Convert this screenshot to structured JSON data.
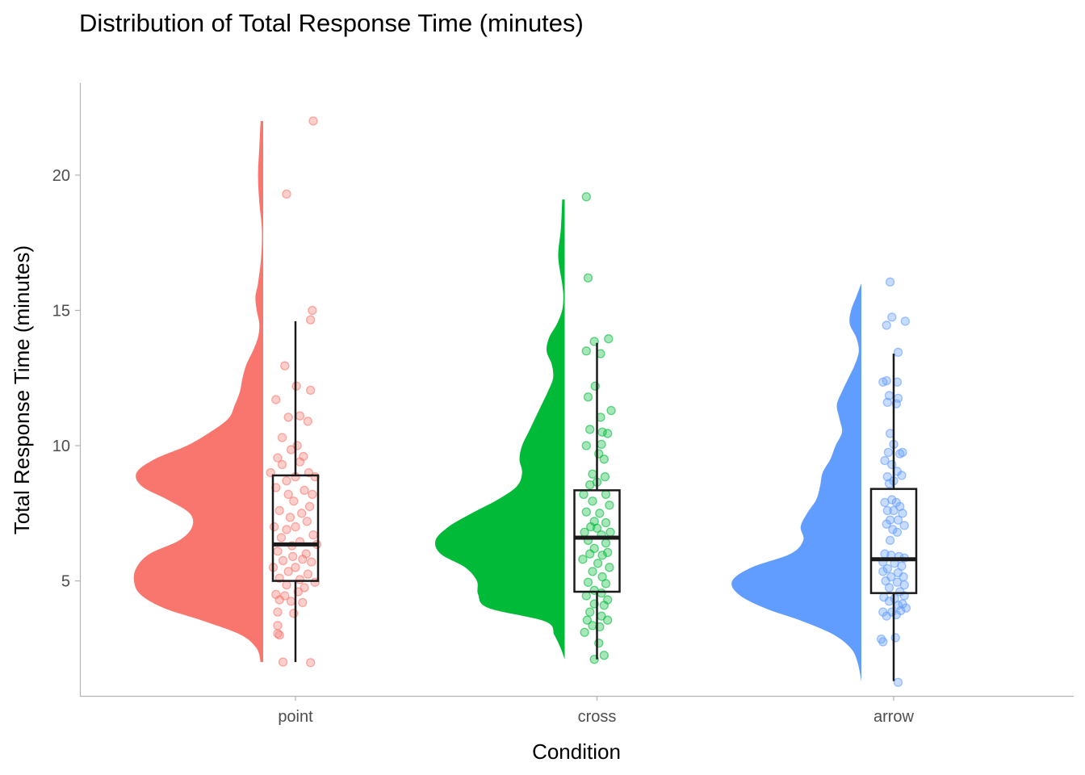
{
  "chart_data": {
    "type": "raincloud",
    "title": "Distribution of Total Response Time (minutes)",
    "xlabel": "Condition",
    "ylabel": "Total Response Time (minutes)",
    "categories": [
      "point",
      "cross",
      "arrow"
    ],
    "y_ticks": [
      5,
      10,
      15,
      20
    ],
    "ylim": [
      0.75,
      23.4
    ],
    "grid": false,
    "legend": "none",
    "colors": {
      "point": "#F8766D",
      "cross": "#00BA38",
      "arrow": "#619CFF",
      "box": "#1a1a1a",
      "axis": "#b3b3b3"
    },
    "series": [
      {
        "name": "point",
        "color": "#F8766D",
        "boxplot": {
          "lower_whisker": 2.0,
          "q1": 5.0,
          "median": 6.35,
          "q3": 8.9,
          "upper_whisker": 14.6
        },
        "density": {
          "y": [
            2.0,
            2.5,
            3.0,
            3.5,
            4.0,
            4.5,
            5.0,
            5.5,
            6.0,
            6.5,
            7.0,
            7.5,
            8.0,
            8.5,
            9.0,
            9.5,
            10.0,
            10.5,
            11.0,
            11.5,
            12.0,
            12.5,
            13.0,
            13.5,
            14.0,
            14.5,
            15.0,
            15.5,
            16.0,
            17.0,
            18.0,
            19.0,
            20.0,
            21.0,
            22.0
          ],
          "width": [
            0.02,
            0.05,
            0.17,
            0.45,
            0.77,
            0.95,
            1.0,
            0.98,
            0.88,
            0.65,
            0.55,
            0.57,
            0.74,
            0.94,
            0.98,
            0.84,
            0.59,
            0.41,
            0.27,
            0.22,
            0.18,
            0.16,
            0.13,
            0.08,
            0.04,
            0.03,
            0.05,
            0.06,
            0.04,
            0.015,
            0.01,
            0.03,
            0.04,
            0.03,
            0.02
          ]
        },
        "points": [
          {
            "x": 0.2,
            "y": 22.0
          },
          {
            "x": -0.1,
            "y": 19.3
          },
          {
            "x": 0.19,
            "y": 15.0
          },
          {
            "x": 0.17,
            "y": 14.65
          },
          {
            "x": -0.12,
            "y": 12.95
          },
          {
            "x": 0.01,
            "y": 12.2
          },
          {
            "x": 0.17,
            "y": 12.05
          },
          {
            "x": -0.22,
            "y": 11.7
          },
          {
            "x": -0.08,
            "y": 11.05
          },
          {
            "x": 0.05,
            "y": 11.1
          },
          {
            "x": 0.14,
            "y": 10.9
          },
          {
            "x": -0.15,
            "y": 10.3
          },
          {
            "x": 0.02,
            "y": 10.0
          },
          {
            "x": -0.05,
            "y": 9.85
          },
          {
            "x": 0.09,
            "y": 9.6
          },
          {
            "x": -0.2,
            "y": 9.55
          },
          {
            "x": -0.15,
            "y": 9.3
          },
          {
            "x": 0.05,
            "y": 9.4
          },
          {
            "x": -0.28,
            "y": 9.0
          },
          {
            "x": 0.15,
            "y": 9.0
          },
          {
            "x": 0.0,
            "y": 8.85
          },
          {
            "x": -0.1,
            "y": 8.7
          },
          {
            "x": 0.22,
            "y": 8.85
          },
          {
            "x": -0.22,
            "y": 8.45
          },
          {
            "x": 0.1,
            "y": 8.35
          },
          {
            "x": -0.08,
            "y": 8.2
          },
          {
            "x": 0.19,
            "y": 8.2
          },
          {
            "x": -0.02,
            "y": 7.95
          },
          {
            "x": 0.16,
            "y": 7.75
          },
          {
            "x": -0.18,
            "y": 7.6
          },
          {
            "x": 0.07,
            "y": 7.5
          },
          {
            "x": -0.06,
            "y": 7.35
          },
          {
            "x": 0.13,
            "y": 7.2
          },
          {
            "x": -0.24,
            "y": 7.0
          },
          {
            "x": 0.0,
            "y": 7.0
          },
          {
            "x": -0.1,
            "y": 6.9
          },
          {
            "x": 0.2,
            "y": 6.7
          },
          {
            "x": -0.16,
            "y": 6.6
          },
          {
            "x": 0.05,
            "y": 6.45
          },
          {
            "x": -0.04,
            "y": 6.3
          },
          {
            "x": 0.24,
            "y": 6.35
          },
          {
            "x": -0.2,
            "y": 6.1
          },
          {
            "x": 0.12,
            "y": 6.0
          },
          {
            "x": -0.03,
            "y": 5.9
          },
          {
            "x": 0.08,
            "y": 5.8
          },
          {
            "x": -0.14,
            "y": 5.75
          },
          {
            "x": 0.18,
            "y": 5.7
          },
          {
            "x": -0.25,
            "y": 5.5
          },
          {
            "x": 0.0,
            "y": 5.5
          },
          {
            "x": -0.08,
            "y": 5.35
          },
          {
            "x": 0.14,
            "y": 5.25
          },
          {
            "x": -0.18,
            "y": 5.1
          },
          {
            "x": 0.05,
            "y": 5.05
          },
          {
            "x": 0.22,
            "y": 4.95
          },
          {
            "x": -0.1,
            "y": 4.85
          },
          {
            "x": 0.1,
            "y": 4.75
          },
          {
            "x": -0.22,
            "y": 4.5
          },
          {
            "x": -0.12,
            "y": 4.45
          },
          {
            "x": 0.03,
            "y": 4.6
          },
          {
            "x": -0.18,
            "y": 4.3
          },
          {
            "x": -0.05,
            "y": 4.25
          },
          {
            "x": 0.08,
            "y": 4.2
          },
          {
            "x": -0.2,
            "y": 3.85
          },
          {
            "x": -0.02,
            "y": 3.8
          },
          {
            "x": -0.2,
            "y": 3.35
          },
          {
            "x": -0.18,
            "y": 3.0
          },
          {
            "x": -0.2,
            "y": 3.05
          },
          {
            "x": -0.14,
            "y": 2.0
          },
          {
            "x": 0.17,
            "y": 1.98
          }
        ]
      },
      {
        "name": "cross",
        "color": "#00BA38",
        "boxplot": {
          "lower_whisker": 2.1,
          "q1": 4.6,
          "median": 6.6,
          "q3": 8.35,
          "upper_whisker": 13.8
        },
        "density": {
          "y": [
            2.1,
            2.5,
            3.0,
            3.5,
            4.0,
            4.5,
            5.0,
            5.5,
            6.0,
            6.5,
            7.0,
            7.5,
            8.0,
            8.5,
            9.0,
            9.5,
            10.0,
            10.5,
            11.0,
            11.5,
            12.0,
            12.5,
            13.0,
            13.5,
            14.0,
            14.5,
            15.0,
            15.5,
            16.0,
            17.0,
            18.0,
            19.0,
            19.1
          ],
          "width": [
            0.0,
            0.03,
            0.08,
            0.15,
            0.59,
            0.67,
            0.68,
            0.77,
            0.96,
            1.0,
            0.9,
            0.72,
            0.52,
            0.37,
            0.33,
            0.35,
            0.33,
            0.28,
            0.23,
            0.18,
            0.13,
            0.09,
            0.1,
            0.14,
            0.12,
            0.06,
            0.02,
            0.01,
            0.02,
            0.05,
            0.03,
            0.02,
            0.02
          ]
        },
        "points": [
          {
            "x": -0.12,
            "y": 19.2
          },
          {
            "x": -0.1,
            "y": 16.2
          },
          {
            "x": 0.13,
            "y": 13.95
          },
          {
            "x": -0.03,
            "y": 13.85
          },
          {
            "x": -0.12,
            "y": 13.5
          },
          {
            "x": 0.04,
            "y": 13.4
          },
          {
            "x": -0.02,
            "y": 12.2
          },
          {
            "x": -0.1,
            "y": 11.8
          },
          {
            "x": 0.16,
            "y": 11.3
          },
          {
            "x": 0.04,
            "y": 11.05
          },
          {
            "x": -0.08,
            "y": 10.6
          },
          {
            "x": 0.12,
            "y": 10.45
          },
          {
            "x": 0.06,
            "y": 10.5
          },
          {
            "x": -0.12,
            "y": 10.0
          },
          {
            "x": 0.05,
            "y": 10.05
          },
          {
            "x": 0.02,
            "y": 9.7
          },
          {
            "x": 0.08,
            "y": 9.5
          },
          {
            "x": -0.05,
            "y": 8.95
          },
          {
            "x": 0.09,
            "y": 8.85
          },
          {
            "x": -0.08,
            "y": 8.55
          },
          {
            "x": 0.0,
            "y": 8.65
          },
          {
            "x": -0.15,
            "y": 8.2
          },
          {
            "x": 0.1,
            "y": 8.2
          },
          {
            "x": -0.05,
            "y": 7.95
          },
          {
            "x": 0.14,
            "y": 7.8
          },
          {
            "x": -0.12,
            "y": 7.55
          },
          {
            "x": 0.03,
            "y": 7.5
          },
          {
            "x": -0.03,
            "y": 7.2
          },
          {
            "x": 0.1,
            "y": 7.15
          },
          {
            "x": -0.07,
            "y": 7.0
          },
          {
            "x": 0.0,
            "y": 6.95
          },
          {
            "x": -0.14,
            "y": 6.8
          },
          {
            "x": 0.05,
            "y": 6.7
          },
          {
            "x": 0.15,
            "y": 6.8
          },
          {
            "x": -0.1,
            "y": 6.5
          },
          {
            "x": 0.1,
            "y": 6.4
          },
          {
            "x": -0.03,
            "y": 6.2
          },
          {
            "x": 0.12,
            "y": 6.05
          },
          {
            "x": -0.08,
            "y": 6.0
          },
          {
            "x": 0.06,
            "y": 5.95
          },
          {
            "x": -0.16,
            "y": 5.8
          },
          {
            "x": 0.01,
            "y": 5.65
          },
          {
            "x": 0.14,
            "y": 5.5
          },
          {
            "x": -0.05,
            "y": 5.35
          },
          {
            "x": 0.06,
            "y": 5.15
          },
          {
            "x": -0.1,
            "y": 4.95
          },
          {
            "x": 0.1,
            "y": 4.9
          },
          {
            "x": -0.03,
            "y": 4.65
          },
          {
            "x": 0.05,
            "y": 4.55
          },
          {
            "x": -0.12,
            "y": 4.45
          },
          {
            "x": 0.12,
            "y": 4.3
          },
          {
            "x": -0.03,
            "y": 4.15
          },
          {
            "x": 0.08,
            "y": 4.1
          },
          {
            "x": -0.08,
            "y": 3.85
          },
          {
            "x": 0.05,
            "y": 3.7
          },
          {
            "x": -0.11,
            "y": 3.55
          },
          {
            "x": 0.12,
            "y": 3.55
          },
          {
            "x": -0.05,
            "y": 3.35
          },
          {
            "x": -0.14,
            "y": 3.1
          },
          {
            "x": 0.03,
            "y": 3.3
          },
          {
            "x": 0.02,
            "y": 2.7
          },
          {
            "x": 0.08,
            "y": 2.25
          },
          {
            "x": -0.03,
            "y": 2.1
          }
        ]
      },
      {
        "name": "arrow",
        "color": "#619CFF",
        "boxplot": {
          "lower_whisker": 1.3,
          "q1": 4.55,
          "median": 5.8,
          "q3": 8.4,
          "upper_whisker": 13.4
        },
        "density": {
          "y": [
            1.3,
            2.0,
            2.5,
            3.0,
            3.5,
            4.0,
            4.5,
            5.0,
            5.5,
            6.0,
            6.5,
            7.0,
            7.5,
            8.0,
            8.5,
            9.0,
            9.5,
            10.0,
            10.5,
            11.0,
            11.5,
            12.0,
            12.5,
            13.0,
            13.5,
            14.0,
            14.5,
            15.0,
            15.5,
            16.0
          ],
          "width": [
            0.0,
            0.03,
            0.08,
            0.21,
            0.45,
            0.75,
            0.95,
            1.0,
            0.85,
            0.55,
            0.45,
            0.47,
            0.42,
            0.35,
            0.32,
            0.3,
            0.24,
            0.2,
            0.15,
            0.17,
            0.19,
            0.15,
            0.1,
            0.05,
            0.02,
            0.04,
            0.09,
            0.08,
            0.04,
            0.0
          ]
        },
        "points": [
          {
            "x": -0.04,
            "y": 16.05
          },
          {
            "x": -0.02,
            "y": 14.75
          },
          {
            "x": 0.13,
            "y": 14.6
          },
          {
            "x": -0.08,
            "y": 14.45
          },
          {
            "x": 0.05,
            "y": 13.45
          },
          {
            "x": -0.12,
            "y": 12.35
          },
          {
            "x": -0.08,
            "y": 12.4
          },
          {
            "x": 0.04,
            "y": 12.35
          },
          {
            "x": -0.05,
            "y": 11.85
          },
          {
            "x": 0.05,
            "y": 11.75
          },
          {
            "x": -0.07,
            "y": 11.6
          },
          {
            "x": 0.03,
            "y": 11.55
          },
          {
            "x": -0.04,
            "y": 10.45
          },
          {
            "x": 0.0,
            "y": 10.05
          },
          {
            "x": -0.06,
            "y": 9.75
          },
          {
            "x": 0.1,
            "y": 9.75
          },
          {
            "x": -0.1,
            "y": 9.45
          },
          {
            "x": 0.07,
            "y": 9.7
          },
          {
            "x": -0.02,
            "y": 9.3
          },
          {
            "x": 0.04,
            "y": 9.05
          },
          {
            "x": -0.07,
            "y": 8.85
          },
          {
            "x": 0.09,
            "y": 8.9
          },
          {
            "x": 0.0,
            "y": 8.7
          },
          {
            "x": -0.05,
            "y": 8.6
          },
          {
            "x": -0.1,
            "y": 7.9
          },
          {
            "x": -0.02,
            "y": 8.0
          },
          {
            "x": 0.03,
            "y": 7.9
          },
          {
            "x": 0.07,
            "y": 7.75
          },
          {
            "x": -0.07,
            "y": 7.6
          },
          {
            "x": 0.0,
            "y": 7.6
          },
          {
            "x": 0.1,
            "y": 7.5
          },
          {
            "x": -0.04,
            "y": 7.25
          },
          {
            "x": 0.05,
            "y": 7.25
          },
          {
            "x": -0.08,
            "y": 7.1
          },
          {
            "x": 0.12,
            "y": 7.05
          },
          {
            "x": -0.01,
            "y": 6.9
          },
          {
            "x": 0.04,
            "y": 6.8
          },
          {
            "x": -0.04,
            "y": 6.5
          },
          {
            "x": -0.1,
            "y": 6.0
          },
          {
            "x": -0.03,
            "y": 5.95
          },
          {
            "x": 0.06,
            "y": 5.9
          },
          {
            "x": 0.12,
            "y": 5.85
          },
          {
            "x": -0.12,
            "y": 5.7
          },
          {
            "x": 0.01,
            "y": 5.65
          },
          {
            "x": 0.09,
            "y": 5.55
          },
          {
            "x": -0.07,
            "y": 5.45
          },
          {
            "x": -0.12,
            "y": 5.35
          },
          {
            "x": 0.05,
            "y": 5.3
          },
          {
            "x": -0.03,
            "y": 5.15
          },
          {
            "x": 0.11,
            "y": 5.15
          },
          {
            "x": -0.09,
            "y": 5.0
          },
          {
            "x": 0.04,
            "y": 4.95
          },
          {
            "x": 0.12,
            "y": 4.85
          },
          {
            "x": -0.05,
            "y": 4.75
          },
          {
            "x": 0.07,
            "y": 4.6
          },
          {
            "x": 0.12,
            "y": 4.45
          },
          {
            "x": -0.11,
            "y": 4.4
          },
          {
            "x": 0.01,
            "y": 4.35
          },
          {
            "x": 0.1,
            "y": 4.15
          },
          {
            "x": -0.05,
            "y": 4.25
          },
          {
            "x": 0.05,
            "y": 4.1
          },
          {
            "x": 0.14,
            "y": 4.0
          },
          {
            "x": -0.12,
            "y": 3.85
          },
          {
            "x": -0.02,
            "y": 3.85
          },
          {
            "x": 0.08,
            "y": 3.9
          },
          {
            "x": -0.08,
            "y": 3.7
          },
          {
            "x": 0.03,
            "y": 3.75
          },
          {
            "x": -0.14,
            "y": 2.85
          },
          {
            "x": 0.02,
            "y": 2.9
          },
          {
            "x": -0.12,
            "y": 2.75
          },
          {
            "x": 0.05,
            "y": 1.25
          }
        ]
      }
    ]
  }
}
